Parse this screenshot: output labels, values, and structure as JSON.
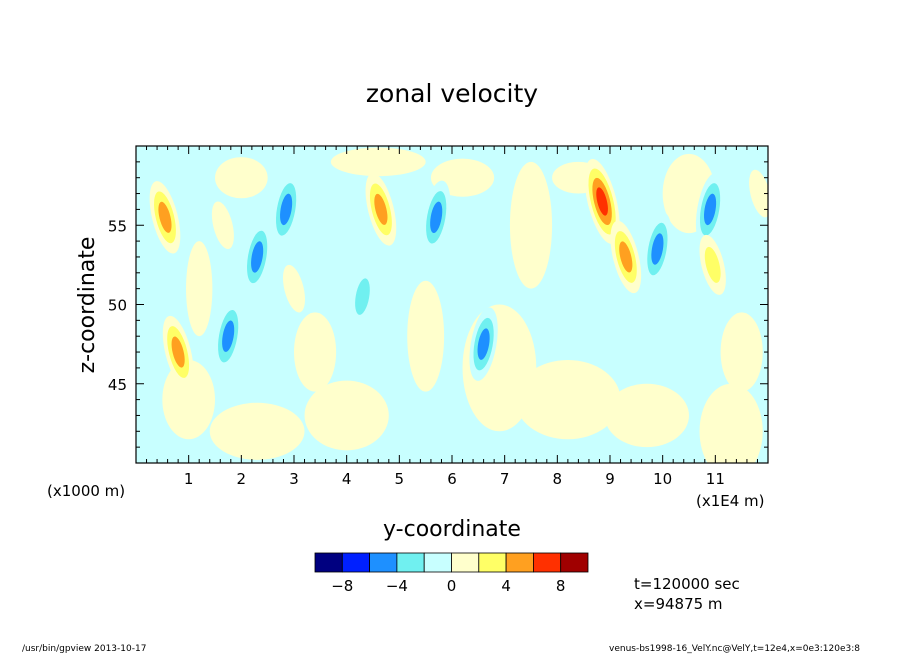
{
  "chart_data": {
    "type": "heatmap",
    "title": "zonal velocity",
    "xlabel": "y-coordinate",
    "ylabel": "z-coordinate",
    "x_offset_label": "(x1000 m)",
    "x_scale_label": "(x1E4 m)",
    "xlim": [
      0,
      12
    ],
    "ylim": [
      40,
      60
    ],
    "x_ticks": [
      1,
      2,
      3,
      4,
      5,
      6,
      7,
      8,
      9,
      10,
      11
    ],
    "x_tick_labels": [
      "1",
      "2",
      "3",
      "4",
      "5",
      "6",
      "7",
      "8",
      "9",
      "10",
      "11"
    ],
    "y_ticks": [
      45,
      50,
      55
    ],
    "y_tick_labels": [
      "45",
      "50",
      "55"
    ],
    "colorbar": {
      "levels": [
        -10,
        -8,
        -6,
        -4,
        -2,
        0,
        2,
        4,
        6,
        8,
        10
      ],
      "colors": [
        "#000080",
        "#0020ff",
        "#1e90ff",
        "#70f0f0",
        "#c8ffff",
        "#ffffcc",
        "#ffff66",
        "#ffa020",
        "#ff3000",
        "#a00000"
      ],
      "tick_values": [
        -8,
        -4,
        0,
        4,
        8
      ],
      "tick_labels": [
        "−8",
        "−4",
        "0",
        "4",
        "8"
      ]
    },
    "annotations": [
      "t=120000 sec",
      "x=94875 m"
    ],
    "features": [
      {
        "y": 0.55,
        "z": 55.5,
        "value": 6
      },
      {
        "y": 0.8,
        "z": 47.0,
        "value": 6
      },
      {
        "y": 1.65,
        "z": 55.0,
        "value": 2
      },
      {
        "y": 1.75,
        "z": 48.0,
        "value": -6
      },
      {
        "y": 2.3,
        "z": 53.0,
        "value": -6
      },
      {
        "y": 2.85,
        "z": 56.0,
        "value": -6
      },
      {
        "y": 3.0,
        "z": 51.0,
        "value": 2
      },
      {
        "y": 4.65,
        "z": 56.0,
        "value": 6
      },
      {
        "y": 4.3,
        "z": 50.5,
        "value": -4
      },
      {
        "y": 5.7,
        "z": 55.5,
        "value": -6
      },
      {
        "y": 6.6,
        "z": 47.5,
        "value": -6
      },
      {
        "y": 8.85,
        "z": 56.5,
        "value": 8
      },
      {
        "y": 9.3,
        "z": 53.0,
        "value": 6
      },
      {
        "y": 9.9,
        "z": 53.5,
        "value": -6
      },
      {
        "y": 10.9,
        "z": 56.0,
        "value": -6
      },
      {
        "y": 10.95,
        "z": 52.5,
        "value": 4
      },
      {
        "y": 11.85,
        "z": 57.0,
        "value": 2
      }
    ]
  },
  "footer": {
    "left": "/usr/bin/gpview  2013-10-17",
    "right": "venus-bs1998-16_VelY.nc@VelY,t=12e4,x=0e3:120e3:8"
  }
}
